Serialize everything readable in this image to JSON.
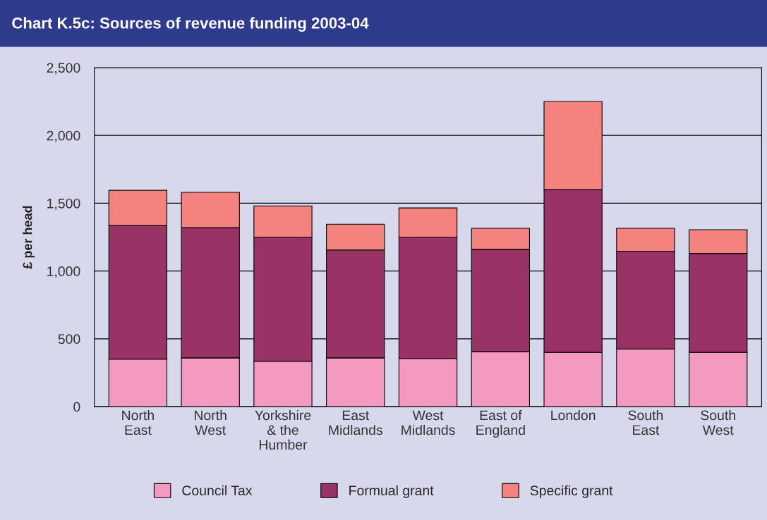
{
  "chart_data": {
    "type": "bar",
    "title": "Chart K.5c: Sources of revenue funding 2003-04",
    "ylabel": "£ per head",
    "categories": [
      "North\nEast",
      "North\nWest",
      "Yorkshire\n& the\nHumber",
      "East\nMidlands",
      "West\nMidlands",
      "East of\nEngland",
      "London",
      "South\nEast",
      "South\nWest"
    ],
    "stacked": true,
    "series": [
      {
        "name": "Council Tax",
        "color": "#f49ac1",
        "values": [
          350,
          360,
          335,
          360,
          355,
          405,
          400,
          425,
          400
        ]
      },
      {
        "name": "Formual grant",
        "color": "#993366",
        "values": [
          985,
          960,
          915,
          795,
          895,
          755,
          1200,
          720,
          730
        ]
      },
      {
        "name": "Specific grant",
        "color": "#f4827f",
        "values": [
          260,
          260,
          230,
          190,
          215,
          155,
          650,
          170,
          175
        ]
      }
    ],
    "ylim": [
      0,
      2500
    ],
    "yticks": [
      0,
      {
        "value": 500,
        "label": "500"
      },
      {
        "value": 1000,
        "label": "1,000"
      },
      {
        "value": 1500,
        "label": "1,500"
      },
      {
        "value": 2000,
        "label": "2,000"
      },
      {
        "value": 2500,
        "label": "2,500"
      }
    ],
    "grid": "y",
    "legend": "bottom"
  }
}
